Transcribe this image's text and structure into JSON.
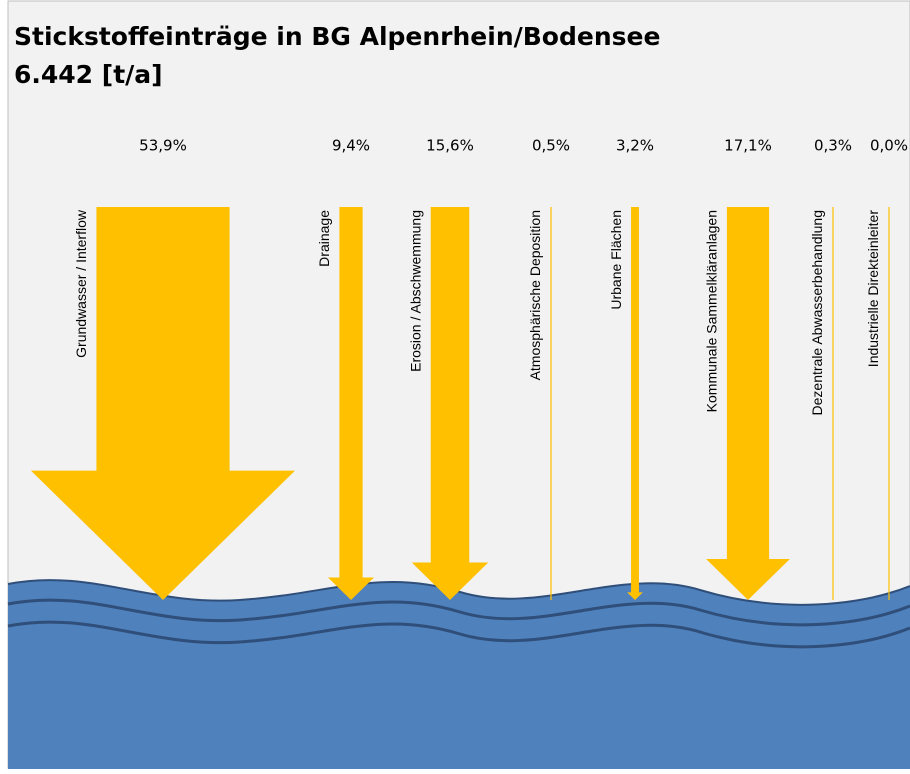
{
  "chart_data": {
    "type": "arrow",
    "title": "Stickstoffeinträge in BG Alpenrhein/Bodensee",
    "subtitle": "6.442 [t/a]",
    "categories": [
      "Grundwasser / Interflow",
      "Drainage",
      "Erosion / Abschwemmung",
      "Atmosphärische Deposition",
      "Urbane Flächen",
      "Kommunale Sammelkläranlagen",
      "Dezentrale Abwasserbehandlung",
      "Industrielle Direkteinleiter"
    ],
    "values": [
      53.9,
      9.4,
      15.6,
      0.5,
      3.2,
      17.1,
      0.3,
      0.0
    ],
    "value_labels": [
      "53,9%",
      "9,4%",
      "15,6%",
      "0,5%",
      "3,2%",
      "17,1%",
      "0,3%",
      "0,0%"
    ],
    "color": "#ffc000"
  }
}
